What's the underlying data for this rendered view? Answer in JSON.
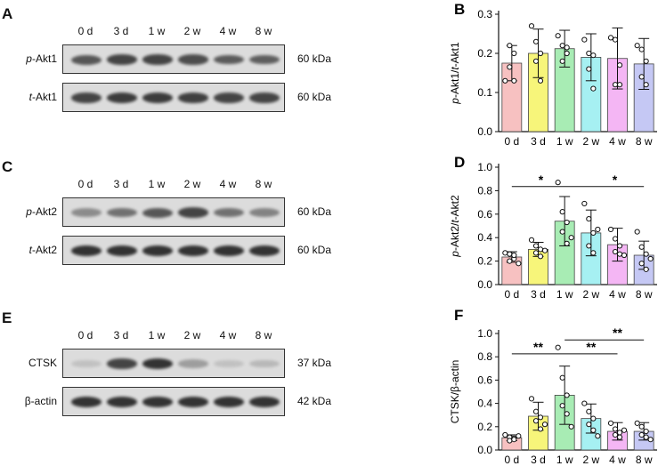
{
  "blots": [
    {
      "letter": "A",
      "lanes": [
        "0 d",
        "3 d",
        "1 w",
        "2 w",
        "4 w",
        "8 w"
      ],
      "rows": [
        {
          "prefix": "p",
          "name": "-Akt1",
          "kda": "60 kDa",
          "intensity": [
            0.75,
            0.85,
            0.85,
            0.8,
            0.72,
            0.7
          ]
        },
        {
          "prefix": "t",
          "name": "-Akt1",
          "kda": "60 kDa",
          "intensity": [
            0.85,
            0.9,
            0.9,
            0.88,
            0.85,
            0.85
          ]
        }
      ]
    },
    {
      "letter": "C",
      "lanes": [
        "0 d",
        "3 d",
        "1 w",
        "2 w",
        "4 w",
        "8 w"
      ],
      "rows": [
        {
          "prefix": "p",
          "name": "-Akt2",
          "kda": "60 kDa",
          "intensity": [
            0.45,
            0.6,
            0.75,
            0.85,
            0.6,
            0.5
          ]
        },
        {
          "prefix": "t",
          "name": "-Akt2",
          "kda": "60 kDa",
          "intensity": [
            0.95,
            0.95,
            0.95,
            0.95,
            0.95,
            0.95
          ]
        }
      ]
    },
    {
      "letter": "E",
      "lanes": [
        "0 d",
        "3 d",
        "1 w",
        "2 w",
        "4 w",
        "8 w"
      ],
      "rows": [
        {
          "prefix": "",
          "name": "CTSK",
          "kda": "37 kDa",
          "intensity": [
            0.15,
            0.85,
            0.95,
            0.35,
            0.15,
            0.2
          ]
        },
        {
          "prefix": "",
          "name": "β-actin",
          "kda": "42 kDa",
          "intensity": [
            0.95,
            0.95,
            0.95,
            0.95,
            0.95,
            0.95
          ]
        }
      ]
    }
  ],
  "colors": {
    "bars": [
      "#f7c1c1",
      "#f7f57a",
      "#a8ecb4",
      "#a6f0f2",
      "#f4b6f4",
      "#c5c8f4"
    ],
    "band": "#2a2a2a"
  },
  "chart_data": [
    {
      "letter": "B",
      "type": "bar",
      "categories": [
        "0 d",
        "3 d",
        "1 w",
        "2 w",
        "4 w",
        "8 w"
      ],
      "ylabel_parts": [
        "p",
        "-Akt1/",
        "t",
        "-Akt1"
      ],
      "ylim": [
        0,
        0.3
      ],
      "yticks": [
        "0.0",
        "0.1",
        "0.2",
        "0.3"
      ],
      "values": [
        0.175,
        0.2,
        0.212,
        0.19,
        0.187,
        0.173
      ],
      "errors": [
        0.045,
        0.062,
        0.047,
        0.06,
        0.078,
        0.065
      ],
      "points": [
        [
          0.13,
          0.165,
          0.2,
          0.22,
          0.13
        ],
        [
          0.27,
          0.23,
          0.2,
          0.18,
          0.13
        ],
        [
          0.245,
          0.22,
          0.2,
          0.18,
          0.215
        ],
        [
          0.235,
          0.2,
          0.195,
          0.16,
          0.11
        ],
        [
          0.24,
          0.235,
          0.17,
          0.12,
          0.12
        ],
        [
          0.22,
          0.21,
          0.18,
          0.14,
          0.12
        ]
      ],
      "sig": []
    },
    {
      "letter": "D",
      "type": "bar",
      "categories": [
        "0 d",
        "3 d",
        "1 w",
        "2 w",
        "4 w",
        "8 w"
      ],
      "ylabel_parts": [
        "p",
        "-Akt2/",
        "t",
        "-Akt2"
      ],
      "ylim": [
        0,
        1.0
      ],
      "yticks": [
        "0.0",
        "0.2",
        "0.4",
        "0.6",
        "0.8",
        "1.0"
      ],
      "values": [
        0.235,
        0.3,
        0.54,
        0.44,
        0.34,
        0.25
      ],
      "errors": [
        0.045,
        0.06,
        0.21,
        0.195,
        0.14,
        0.12
      ],
      "points": [
        [
          0.27,
          0.26,
          0.22,
          0.2,
          0.25,
          0.18
        ],
        [
          0.38,
          0.33,
          0.3,
          0.27,
          0.24,
          0.29
        ],
        [
          0.87,
          0.62,
          0.53,
          0.45,
          0.35,
          0.4
        ],
        [
          0.69,
          0.56,
          0.44,
          0.33,
          0.27,
          0.47
        ],
        [
          0.47,
          0.39,
          0.33,
          0.28,
          0.26,
          0.25
        ],
        [
          0.45,
          0.32,
          0.26,
          0.18,
          0.13,
          0.22
        ]
      ],
      "sig": [
        {
          "from": 0,
          "to": 5,
          "y": 0.835,
          "label": "*",
          "label_at": [
            1.1,
            3.9
          ]
        }
      ]
    },
    {
      "letter": "F",
      "type": "bar",
      "categories": [
        "0 d",
        "3 d",
        "1 w",
        "2 w",
        "4 w",
        "8 w"
      ],
      "ylabel_parts": [
        "",
        "CTSK/β-actin",
        "",
        ""
      ],
      "ylim": [
        0,
        1.0
      ],
      "yticks": [
        "0.0",
        "0.2",
        "0.4",
        "0.6",
        "0.8",
        "1.0"
      ],
      "values": [
        0.105,
        0.29,
        0.47,
        0.27,
        0.16,
        0.16
      ],
      "errors": [
        0.025,
        0.12,
        0.25,
        0.125,
        0.075,
        0.075
      ],
      "points": [
        [
          0.13,
          0.11,
          0.1,
          0.08,
          0.09,
          0.12
        ],
        [
          0.44,
          0.33,
          0.28,
          0.25,
          0.18,
          0.22
        ],
        [
          0.88,
          0.62,
          0.47,
          0.38,
          0.31,
          0.2
        ],
        [
          0.4,
          0.33,
          0.27,
          0.22,
          0.17,
          0.12
        ],
        [
          0.23,
          0.18,
          0.15,
          0.13,
          0.11,
          0.17
        ],
        [
          0.23,
          0.2,
          0.16,
          0.13,
          0.11,
          0.09
        ]
      ],
      "sig": [
        {
          "from": 0,
          "to": 4,
          "y": 0.825,
          "label": "**",
          "label_at": [
            1.0,
            3.0
          ]
        },
        {
          "from": 2,
          "to": 5,
          "y": 0.945,
          "label": "**",
          "label_at": [
            4.0
          ]
        }
      ]
    }
  ]
}
